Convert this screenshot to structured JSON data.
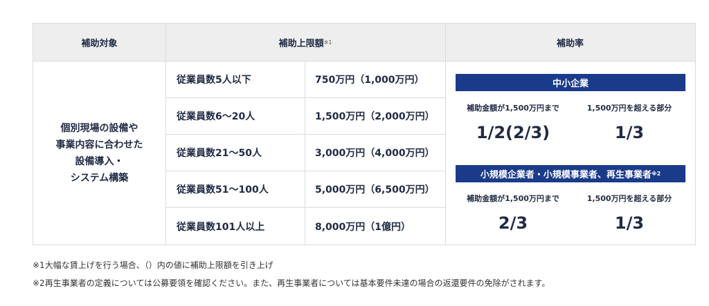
{
  "header": {
    "target": "補助対象",
    "limit": "補助上限額",
    "limit_note": "※1",
    "rate": "補助率"
  },
  "target_lines": [
    "個別現場の設備や",
    "事業内容に合わせた",
    "設備導入・",
    "システム構築"
  ],
  "rows": [
    {
      "employees": "従業員数5人以下",
      "amount": "750万円（1,000万円）"
    },
    {
      "employees": "従業員数6〜20人",
      "amount": "1,500万円（2,000万円）"
    },
    {
      "employees": "従業員数21〜50人",
      "amount": "3,000万円（4,000万円）"
    },
    {
      "employees": "従業員数51〜100人",
      "amount": "5,000万円（6,500万円）"
    },
    {
      "employees": "従業員数101人以上",
      "amount": "8,000万円（1億円）"
    }
  ],
  "rates": {
    "sme": {
      "title": "中小企業",
      "col1_label": "補助金額が1,500万円まで",
      "col2_label": "1,500万円を超える部分",
      "col1_value": "1/2(2/3)",
      "col2_value": "1/3"
    },
    "small": {
      "title": "小規模企業者・小規模事業者、再生事業者",
      "title_note": "※2",
      "col1_label": "補助金額が1,500万円まで",
      "col2_label": "1,500万円を超える部分",
      "col1_value": "2/3",
      "col2_value": "1/3"
    }
  },
  "notes": [
    "※1大幅な賃上げを行う場合、（）内の値に補助上限額を引き上げ",
    "※2再生事業者の定義については公募要領を確認ください。また、再生事業者については基本要件未達の場合の返還要件の免除がされます。"
  ],
  "colors": {
    "band": "#1a3a8a",
    "header_bg": "#eeeeee",
    "text": "#1f2a44"
  }
}
